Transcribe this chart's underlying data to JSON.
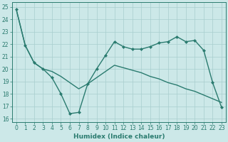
{
  "xlabel": "Humidex (Indice chaleur)",
  "xlim": [
    -0.5,
    23.5
  ],
  "ylim": [
    15.7,
    25.4
  ],
  "yticks": [
    16,
    17,
    18,
    19,
    20,
    21,
    22,
    23,
    24,
    25
  ],
  "xticks": [
    0,
    1,
    2,
    3,
    4,
    5,
    6,
    7,
    8,
    9,
    10,
    11,
    12,
    13,
    14,
    15,
    16,
    17,
    18,
    19,
    20,
    21,
    22,
    23
  ],
  "line1_x": [
    0,
    1,
    2,
    3,
    4,
    5,
    6,
    7,
    8,
    9,
    10,
    11,
    12,
    13,
    14,
    15,
    16,
    17,
    18,
    19,
    20,
    21,
    22,
    23
  ],
  "line1_y": [
    24.8,
    21.9,
    20.5,
    20.0,
    19.3,
    18.0,
    16.4,
    16.5,
    18.8,
    20.0,
    21.1,
    22.2,
    21.8,
    21.6,
    21.6,
    21.8,
    22.1,
    22.2,
    22.6,
    22.2,
    22.3,
    21.5,
    18.9,
    16.9
  ],
  "line2_x": [
    0,
    1,
    2,
    3,
    4,
    5,
    6,
    7,
    8,
    9,
    10,
    11,
    12,
    13,
    14,
    15,
    16,
    17,
    18,
    19,
    20,
    21,
    22,
    23
  ],
  "line2_y": [
    24.8,
    21.9,
    20.5,
    20.0,
    19.8,
    19.4,
    18.9,
    18.4,
    18.8,
    19.3,
    19.8,
    20.3,
    20.1,
    19.9,
    19.7,
    19.4,
    19.2,
    18.9,
    18.7,
    18.4,
    18.2,
    17.9,
    17.6,
    17.3
  ],
  "line_color": "#2a7b6f",
  "bg_color": "#cce8e8",
  "grid_color": "#a8cece",
  "marker": "D",
  "marker_size": 2.0,
  "line_width": 1.0,
  "tick_fontsize": 5.5,
  "xlabel_fontsize": 6.5
}
